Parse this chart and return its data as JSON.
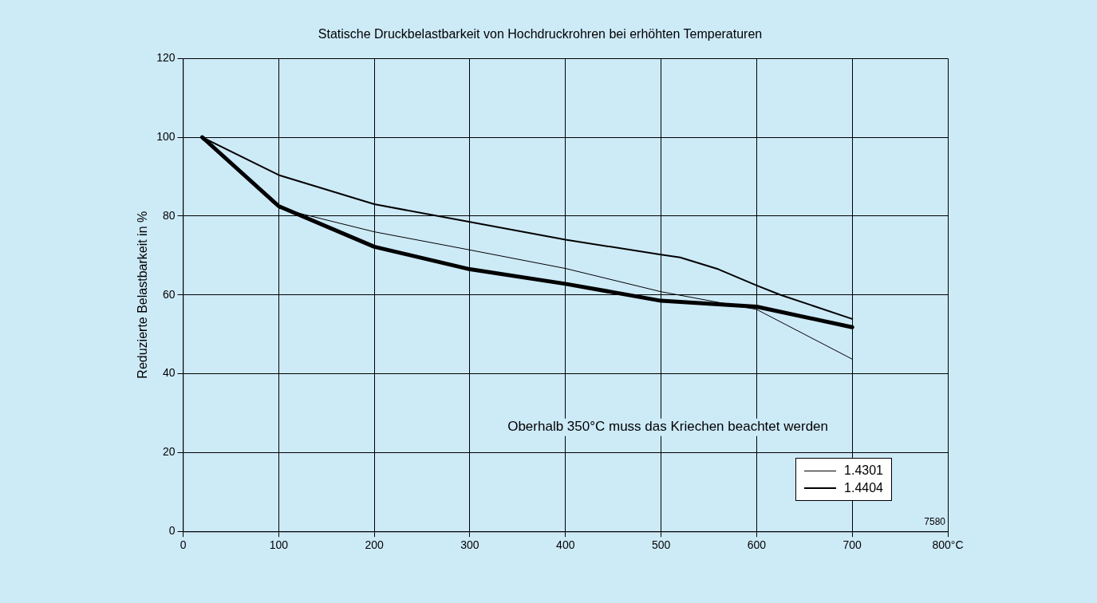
{
  "chart_data": {
    "type": "line",
    "title": "Statische Druckbelastbarkeit von Hochdruckrohren bei erhöhten Temperaturen",
    "ylabel": "Reduzierte Belastbarkeit in %",
    "x": [
      20,
      100,
      200,
      300,
      400,
      500,
      600,
      700
    ],
    "series": [
      {
        "name": "1.4301",
        "color": "#000000",
        "values": [
          100,
          82,
          76,
          71.4,
          66.7,
          60.8,
          56.3,
          43.7
        ]
      },
      {
        "name": "1.4404",
        "color": "#000000",
        "x": [
          20,
          100,
          200,
          300,
          400,
          500,
          520,
          560,
          600,
          625,
          700
        ],
        "values": [
          100,
          90.4,
          83,
          78.5,
          74,
          70.2,
          69.5,
          66.5,
          62.4,
          60,
          53.9
        ]
      },
      {
        "color": "#000000",
        "values": [
          100,
          82.5,
          72.2,
          66.5,
          62.8,
          58.5,
          57,
          51.8
        ]
      }
    ],
    "xlim": [
      0,
      800
    ],
    "xticks": [
      0,
      100,
      200,
      300,
      400,
      500,
      600,
      700,
      {
        "value": 800,
        "label": "800°C"
      }
    ],
    "ylim": [
      0,
      120
    ],
    "yticks": [
      0,
      20,
      40,
      60,
      80,
      100,
      120
    ],
    "grid": true,
    "legend": "bottom right",
    "marker": "none",
    "line_style": "solid",
    "annotations": [
      "Oberhalb 350°C muss das Kriechen beachtet werden",
      "7580"
    ]
  }
}
